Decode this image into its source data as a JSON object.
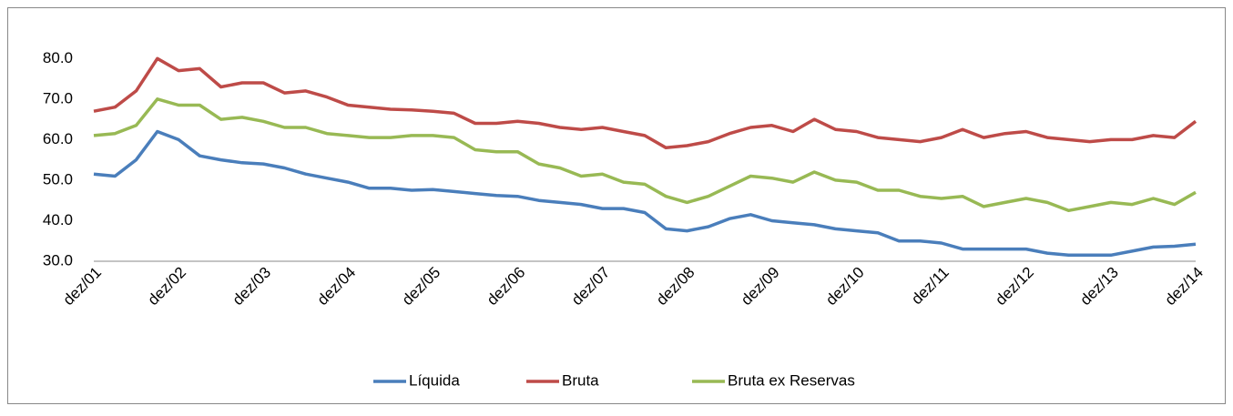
{
  "chart_data": {
    "type": "line",
    "categories": [
      "dez/01",
      null,
      null,
      null,
      "dez/02",
      null,
      null,
      null,
      "dez/03",
      null,
      null,
      null,
      "dez/04",
      null,
      null,
      null,
      "dez/05",
      null,
      null,
      null,
      "dez/06",
      null,
      null,
      null,
      "dez/07",
      null,
      null,
      null,
      "dez/08",
      null,
      null,
      null,
      "dez/09",
      null,
      null,
      null,
      "dez/10",
      null,
      null,
      null,
      "dez/11",
      null,
      null,
      null,
      "dez/12",
      null,
      null,
      null,
      "dez/13",
      null,
      null,
      null,
      "dez/14"
    ],
    "series": [
      {
        "name": "Líquida",
        "color": "#4a7ebb",
        "values": [
          51.5,
          51,
          55,
          62,
          60,
          56,
          55,
          54.3,
          54,
          53,
          51.5,
          50.5,
          49.5,
          48,
          48,
          47.5,
          47.7,
          47.2,
          46.7,
          46.2,
          46,
          45,
          44.5,
          44,
          43,
          43,
          42,
          38,
          37.5,
          38.5,
          40.5,
          41.5,
          40,
          39.5,
          39,
          38,
          37.5,
          37,
          35,
          35,
          34.5,
          33,
          33,
          33,
          33,
          32,
          31.5,
          31.5,
          31.5,
          32.5,
          33.5,
          33.7,
          34.2
        ]
      },
      {
        "name": "Bruta",
        "color": "#be4b48",
        "values": [
          67,
          68,
          72,
          80,
          77,
          77.5,
          73,
          74,
          74,
          71.5,
          72,
          70.5,
          68.5,
          68,
          67.5,
          67.3,
          67,
          66.5,
          64,
          64,
          64.5,
          64,
          63,
          62.5,
          63,
          62,
          61,
          58,
          58.5,
          59.5,
          61.5,
          63,
          63.5,
          62,
          65,
          62.5,
          62,
          60.5,
          60,
          59.5,
          60.5,
          62.5,
          60.5,
          61.5,
          62,
          60.5,
          60,
          59.5,
          60,
          60,
          61,
          60.5,
          64.5
        ]
      },
      {
        "name": "Bruta ex Reservas",
        "color": "#98b954",
        "values": [
          61,
          61.5,
          63.5,
          70,
          68.5,
          68.5,
          65,
          65.5,
          64.5,
          63,
          63,
          61.5,
          61,
          60.5,
          60.5,
          61,
          61,
          60.5,
          57.5,
          57,
          57,
          54,
          53,
          51,
          51.5,
          49.5,
          49,
          46,
          44.5,
          46,
          48.5,
          51,
          50.5,
          49.5,
          52,
          50,
          49.5,
          47.5,
          47.5,
          46,
          45.5,
          46,
          43.5,
          44.5,
          45.5,
          44.5,
          42.5,
          43.5,
          44.5,
          44,
          45.5,
          44,
          47
        ]
      }
    ],
    "ylim": [
      30,
      85
    ],
    "yticks": [
      {
        "value": 30,
        "label": "30.0"
      },
      {
        "value": 40,
        "label": "40.0"
      },
      {
        "value": 50,
        "label": "50.0"
      },
      {
        "value": 60,
        "label": "60.0"
      },
      {
        "value": 70,
        "label": "70.0"
      },
      {
        "value": 80,
        "label": "80.0"
      }
    ],
    "legend": "bottom"
  }
}
